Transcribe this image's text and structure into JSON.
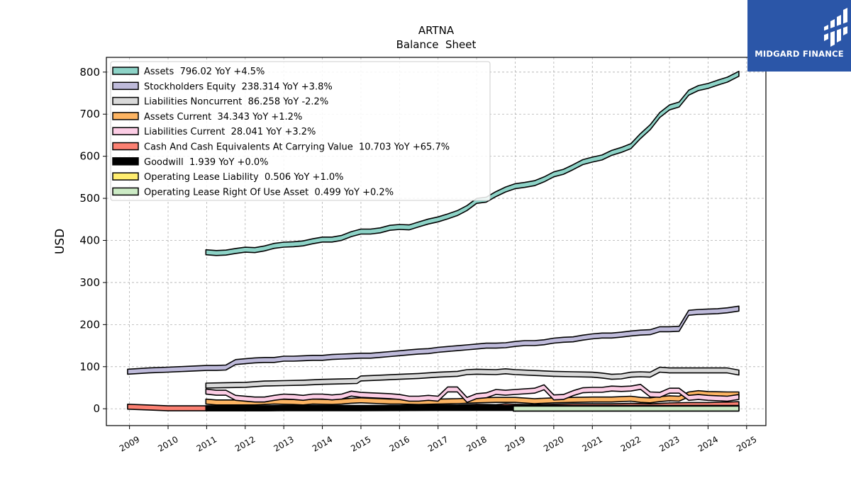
{
  "brand": {
    "name": "MIDGARD FINANCE",
    "color": "#2b56a8"
  },
  "chart_data": {
    "type": "area",
    "title": "ARTNA",
    "subtitle": "Balance  Sheet",
    "ylabel": "USD",
    "xlabel": "",
    "ylim": [
      -40,
      835
    ],
    "xlim": [
      2008.4,
      2025.5
    ],
    "yticks": [
      0,
      100,
      200,
      300,
      400,
      500,
      600,
      700,
      800
    ],
    "xticks": [
      "2009",
      "2010",
      "2011",
      "2012",
      "2013",
      "2014",
      "2015",
      "2016",
      "2017",
      "2018",
      "2019",
      "2020",
      "2021",
      "2022",
      "2023",
      "2024",
      "2025"
    ],
    "grid": true,
    "legend_position": "top-left",
    "series": [
      {
        "name": "Assets",
        "label": "Assets  796.02 YoY +4.5%",
        "color": "#8dd3c7",
        "points": [
          [
            2010.98,
            372
          ],
          [
            2011.25,
            370
          ],
          [
            2011.5,
            371
          ],
          [
            2011.75,
            375
          ],
          [
            2012.0,
            378
          ],
          [
            2012.25,
            377
          ],
          [
            2012.5,
            381
          ],
          [
            2012.75,
            387
          ],
          [
            2013.0,
            390
          ],
          [
            2013.25,
            391
          ],
          [
            2013.5,
            393
          ],
          [
            2013.75,
            398
          ],
          [
            2014.0,
            402
          ],
          [
            2014.25,
            402
          ],
          [
            2014.5,
            406
          ],
          [
            2014.75,
            415
          ],
          [
            2015.0,
            421
          ],
          [
            2015.25,
            421
          ],
          [
            2015.5,
            424
          ],
          [
            2015.75,
            430
          ],
          [
            2016.0,
            432
          ],
          [
            2016.25,
            431
          ],
          [
            2016.5,
            438
          ],
          [
            2016.75,
            445
          ],
          [
            2017.0,
            450
          ],
          [
            2017.25,
            457
          ],
          [
            2017.5,
            465
          ],
          [
            2017.75,
            477
          ],
          [
            2018.0,
            494
          ],
          [
            2018.25,
            497
          ],
          [
            2018.5,
            510
          ],
          [
            2018.75,
            521
          ],
          [
            2019.0,
            529
          ],
          [
            2019.25,
            532
          ],
          [
            2019.5,
            536
          ],
          [
            2019.75,
            545
          ],
          [
            2020.0,
            557
          ],
          [
            2020.25,
            563
          ],
          [
            2020.5,
            574
          ],
          [
            2020.75,
            586
          ],
          [
            2021.0,
            592
          ],
          [
            2021.25,
            597
          ],
          [
            2021.5,
            608
          ],
          [
            2021.75,
            615
          ],
          [
            2022.0,
            624
          ],
          [
            2022.25,
            648
          ],
          [
            2022.5,
            669
          ],
          [
            2022.75,
            698
          ],
          [
            2023.0,
            716
          ],
          [
            2023.25,
            723
          ],
          [
            2023.5,
            751
          ],
          [
            2023.75,
            762
          ],
          [
            2024.0,
            767
          ],
          [
            2024.25,
            775
          ],
          [
            2024.5,
            782
          ],
          [
            2024.8,
            796
          ]
        ]
      },
      {
        "name": "Stockholders Equity",
        "label": "Stockholders Equity  238.314 YoY +3.8%",
        "color": "#bebada",
        "points": [
          [
            2008.95,
            88
          ],
          [
            2009.5,
            91
          ],
          [
            2010.0,
            93
          ],
          [
            2010.5,
            95
          ],
          [
            2011.0,
            97
          ],
          [
            2011.25,
            97
          ],
          [
            2011.5,
            98
          ],
          [
            2011.75,
            111
          ],
          [
            2012.0,
            113
          ],
          [
            2012.25,
            115
          ],
          [
            2012.5,
            116
          ],
          [
            2012.75,
            116
          ],
          [
            2013.0,
            119
          ],
          [
            2013.25,
            119
          ],
          [
            2013.5,
            120
          ],
          [
            2013.75,
            121
          ],
          [
            2014.0,
            121
          ],
          [
            2014.25,
            123
          ],
          [
            2014.5,
            124
          ],
          [
            2014.75,
            125
          ],
          [
            2015.0,
            126
          ],
          [
            2015.25,
            126
          ],
          [
            2015.5,
            128
          ],
          [
            2015.75,
            130
          ],
          [
            2016.0,
            132
          ],
          [
            2016.25,
            134
          ],
          [
            2016.5,
            136
          ],
          [
            2016.75,
            137
          ],
          [
            2017.0,
            140
          ],
          [
            2017.25,
            142
          ],
          [
            2017.5,
            144
          ],
          [
            2017.75,
            146
          ],
          [
            2018.0,
            148
          ],
          [
            2018.25,
            150
          ],
          [
            2018.5,
            150
          ],
          [
            2018.75,
            151
          ],
          [
            2019.0,
            154
          ],
          [
            2019.25,
            156
          ],
          [
            2019.5,
            156
          ],
          [
            2019.75,
            158
          ],
          [
            2020.0,
            162
          ],
          [
            2020.25,
            164
          ],
          [
            2020.5,
            165
          ],
          [
            2020.75,
            169
          ],
          [
            2021.0,
            172
          ],
          [
            2021.25,
            174
          ],
          [
            2021.5,
            174
          ],
          [
            2021.75,
            176
          ],
          [
            2022.0,
            179
          ],
          [
            2022.25,
            181
          ],
          [
            2022.5,
            182
          ],
          [
            2022.75,
            189
          ],
          [
            2023.0,
            189
          ],
          [
            2023.25,
            190
          ],
          [
            2023.5,
            228
          ],
          [
            2023.75,
            230
          ],
          [
            2024.0,
            231
          ],
          [
            2024.25,
            232
          ],
          [
            2024.5,
            234
          ],
          [
            2024.8,
            238
          ]
        ]
      },
      {
        "name": "Liabilities Noncurrent",
        "label": "Liabilities Noncurrent  86.258 YoY -2.2%",
        "color": "#d9d9d9",
        "points": [
          [
            2010.98,
            55
          ],
          [
            2011.5,
            56
          ],
          [
            2012.0,
            57
          ],
          [
            2012.5,
            60
          ],
          [
            2013.0,
            61
          ],
          [
            2013.5,
            62
          ],
          [
            2014.0,
            64
          ],
          [
            2014.5,
            65
          ],
          [
            2014.9,
            66
          ],
          [
            2015.0,
            72
          ],
          [
            2015.5,
            74
          ],
          [
            2016.0,
            76
          ],
          [
            2016.5,
            78
          ],
          [
            2017.0,
            81
          ],
          [
            2017.5,
            83
          ],
          [
            2017.75,
            87
          ],
          [
            2018.0,
            88
          ],
          [
            2018.5,
            87
          ],
          [
            2018.75,
            89
          ],
          [
            2019.0,
            87
          ],
          [
            2019.5,
            85
          ],
          [
            2019.75,
            84
          ],
          [
            2020.0,
            83
          ],
          [
            2020.5,
            82
          ],
          [
            2021.0,
            81
          ],
          [
            2021.25,
            79
          ],
          [
            2021.5,
            76
          ],
          [
            2021.75,
            77
          ],
          [
            2022.0,
            81
          ],
          [
            2022.25,
            82
          ],
          [
            2022.5,
            81
          ],
          [
            2022.75,
            93
          ],
          [
            2023.0,
            91
          ],
          [
            2023.5,
            91
          ],
          [
            2024.0,
            91
          ],
          [
            2024.5,
            91
          ],
          [
            2024.8,
            86
          ]
        ]
      },
      {
        "name": "Assets Current",
        "label": "Assets Current  34.343 YoY +1.2%",
        "color": "#fdb462",
        "points": [
          [
            2010.98,
            17
          ],
          [
            2011.25,
            15
          ],
          [
            2011.75,
            15
          ],
          [
            2012.25,
            15
          ],
          [
            2012.75,
            17
          ],
          [
            2013.25,
            16
          ],
          [
            2013.5,
            15
          ],
          [
            2013.75,
            17
          ],
          [
            2014.25,
            16
          ],
          [
            2014.5,
            17
          ],
          [
            2014.75,
            19
          ],
          [
            2015.0,
            20
          ],
          [
            2015.5,
            18
          ],
          [
            2015.75,
            17
          ],
          [
            2016.0,
            17
          ],
          [
            2016.5,
            16
          ],
          [
            2017.0,
            17
          ],
          [
            2017.5,
            18
          ],
          [
            2018.0,
            20
          ],
          [
            2018.5,
            21
          ],
          [
            2018.75,
            21
          ],
          [
            2019.0,
            21
          ],
          [
            2019.5,
            18
          ],
          [
            2020.0,
            20
          ],
          [
            2020.5,
            21
          ],
          [
            2021.0,
            22
          ],
          [
            2021.5,
            22
          ],
          [
            2022.0,
            24
          ],
          [
            2022.25,
            21
          ],
          [
            2022.5,
            20
          ],
          [
            2022.75,
            23
          ],
          [
            2023.0,
            25
          ],
          [
            2023.25,
            24
          ],
          [
            2023.5,
            34
          ],
          [
            2023.75,
            37
          ],
          [
            2024.0,
            35
          ],
          [
            2024.5,
            34
          ],
          [
            2024.8,
            34
          ]
        ]
      },
      {
        "name": "Liabilities Current",
        "label": "Liabilities Current  28.041 YoY +3.2%",
        "color": "#fccde5",
        "points": [
          [
            2010.98,
            41
          ],
          [
            2011.25,
            38
          ],
          [
            2011.5,
            38
          ],
          [
            2011.75,
            26
          ],
          [
            2012.25,
            22
          ],
          [
            2012.5,
            22
          ],
          [
            2012.75,
            26
          ],
          [
            2013.0,
            29
          ],
          [
            2013.25,
            28
          ],
          [
            2013.5,
            26
          ],
          [
            2013.75,
            29
          ],
          [
            2014.0,
            29
          ],
          [
            2014.25,
            27
          ],
          [
            2014.5,
            29
          ],
          [
            2014.75,
            36
          ],
          [
            2015.0,
            33
          ],
          [
            2015.5,
            31
          ],
          [
            2015.75,
            30
          ],
          [
            2016.0,
            28
          ],
          [
            2016.25,
            24
          ],
          [
            2016.5,
            24
          ],
          [
            2016.75,
            26
          ],
          [
            2017.0,
            24
          ],
          [
            2017.25,
            46
          ],
          [
            2017.5,
            46
          ],
          [
            2017.75,
            21
          ],
          [
            2018.0,
            30
          ],
          [
            2018.25,
            32
          ],
          [
            2018.5,
            40
          ],
          [
            2018.75,
            38
          ],
          [
            2019.0,
            40
          ],
          [
            2019.5,
            43
          ],
          [
            2019.75,
            51
          ],
          [
            2020.0,
            27
          ],
          [
            2020.25,
            28
          ],
          [
            2020.5,
            37
          ],
          [
            2020.75,
            44
          ],
          [
            2021.0,
            45
          ],
          [
            2021.25,
            45
          ],
          [
            2021.5,
            48
          ],
          [
            2021.75,
            47
          ],
          [
            2022.0,
            48
          ],
          [
            2022.25,
            52
          ],
          [
            2022.5,
            34
          ],
          [
            2022.75,
            33
          ],
          [
            2023.0,
            43
          ],
          [
            2023.25,
            43
          ],
          [
            2023.5,
            26
          ],
          [
            2023.75,
            28
          ],
          [
            2024.0,
            26
          ],
          [
            2024.25,
            25
          ],
          [
            2024.5,
            24
          ],
          [
            2024.8,
            28
          ]
        ]
      },
      {
        "name": "Cash And Cash Equivalents At Carrying Value",
        "label": "Cash And Cash Equivalents At Carrying Value  10.703 YoY +65.7%",
        "color": "#fb8072",
        "points": [
          [
            2008.95,
            5
          ],
          [
            2009.5,
            3
          ],
          [
            2010.0,
            1
          ],
          [
            2010.5,
            1
          ],
          [
            2011.0,
            1
          ],
          [
            2011.5,
            1
          ],
          [
            2012.0,
            1
          ],
          [
            2012.5,
            1
          ],
          [
            2013.0,
            2
          ],
          [
            2013.5,
            2
          ],
          [
            2014.0,
            2
          ],
          [
            2014.5,
            2
          ],
          [
            2015.0,
            2
          ],
          [
            2015.5,
            2
          ],
          [
            2016.0,
            2
          ],
          [
            2016.5,
            3
          ],
          [
            2017.0,
            3
          ],
          [
            2017.5,
            3
          ],
          [
            2018.0,
            5
          ],
          [
            2018.5,
            4
          ],
          [
            2018.75,
            6
          ],
          [
            2019.0,
            5
          ],
          [
            2019.5,
            4
          ],
          [
            2020.0,
            5
          ],
          [
            2020.5,
            6
          ],
          [
            2021.0,
            6
          ],
          [
            2021.5,
            6
          ],
          [
            2022.0,
            7
          ],
          [
            2022.5,
            6
          ],
          [
            2023.0,
            8
          ],
          [
            2023.5,
            9
          ],
          [
            2024.0,
            9
          ],
          [
            2024.5,
            10
          ],
          [
            2024.8,
            11
          ]
        ]
      },
      {
        "name": "Goodwill",
        "label": "Goodwill  1.939 YoY +0.0%",
        "color": "#000000",
        "points": [
          [
            2010.98,
            1
          ],
          [
            2013.0,
            1.2
          ],
          [
            2015.0,
            1.4
          ],
          [
            2017.0,
            1.9
          ],
          [
            2019.0,
            1.9
          ],
          [
            2021.0,
            1.9
          ],
          [
            2023.0,
            1.9
          ],
          [
            2024.8,
            1.9
          ]
        ]
      },
      {
        "name": "Operating Lease Liability",
        "label": "Operating Lease Liability  0.506 YoY +1.0%",
        "color": "#ffed6f",
        "points": [
          [
            2018.95,
            0.5
          ],
          [
            2024.8,
            0.5
          ]
        ]
      },
      {
        "name": "Operating Lease Right Of Use Asset",
        "label": "Operating Lease Right Of Use Asset  0.499 YoY +0.2%",
        "color": "#ccebc5",
        "points": [
          [
            2018.95,
            0.5
          ],
          [
            2024.8,
            0.5
          ]
        ]
      }
    ]
  }
}
